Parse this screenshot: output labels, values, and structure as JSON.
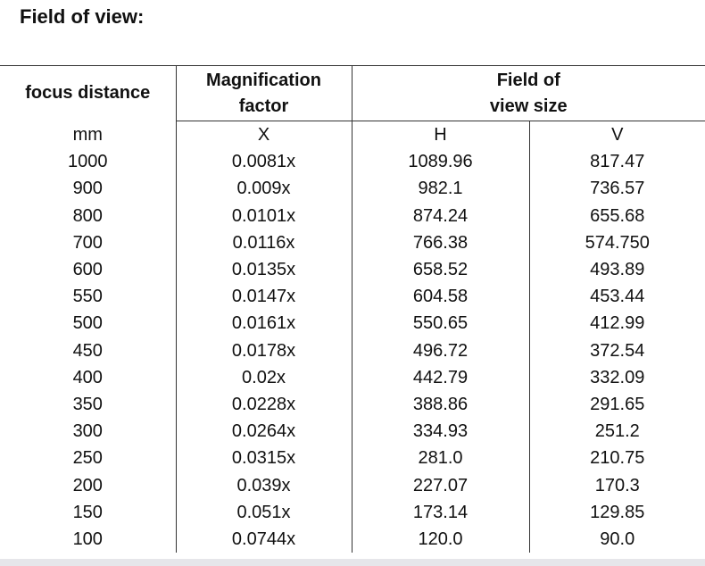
{
  "title": "Field of view:",
  "table": {
    "header": [
      "focus distance",
      "Magnification factor",
      "Field of view size"
    ],
    "units": [
      "mm",
      "X",
      "H",
      "V"
    ],
    "rows": [
      [
        "1000",
        "0.0081x",
        "1089.96",
        "817.47"
      ],
      [
        "900",
        "0.009x",
        "982.1",
        "736.57"
      ],
      [
        "800",
        "0.0101x",
        "874.24",
        "655.68"
      ],
      [
        "700",
        "0.0116x",
        "766.38",
        "574.750"
      ],
      [
        "600",
        "0.0135x",
        "658.52",
        "493.89"
      ],
      [
        "550",
        "0.0147x",
        "604.58",
        "453.44"
      ],
      [
        "500",
        "0.0161x",
        "550.65",
        "412.99"
      ],
      [
        "450",
        "0.0178x",
        "496.72",
        "372.54"
      ],
      [
        "400",
        "0.02x",
        "442.79",
        "332.09"
      ],
      [
        "350",
        "0.0228x",
        "388.86",
        "291.65"
      ],
      [
        "300",
        "0.0264x",
        "334.93",
        "251.2"
      ],
      [
        "250",
        "0.0315x",
        "281.0",
        "210.75"
      ],
      [
        "200",
        "0.039x",
        "227.07",
        "170.3"
      ],
      [
        "150",
        "0.051x",
        "173.14",
        "129.85"
      ],
      [
        "100",
        "0.0744x",
        "120.0",
        "90.0"
      ]
    ]
  }
}
